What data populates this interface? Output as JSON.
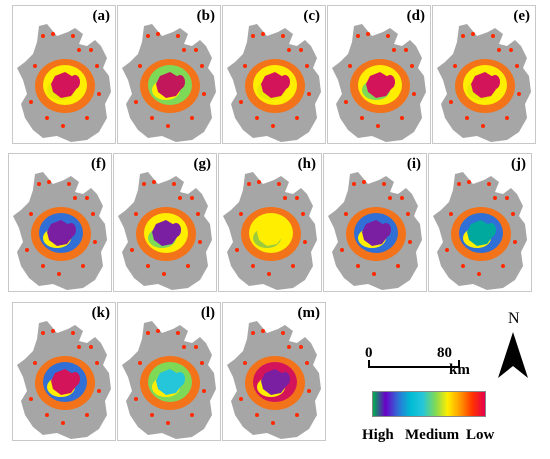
{
  "panels": [
    {
      "label": "(a)",
      "core": "#d4145a",
      "ring": "#ffee00",
      "accent": "#e8e800"
    },
    {
      "label": "(b)",
      "core": "#c2185b",
      "ring": "#7ed957",
      "accent": "#ffee00"
    },
    {
      "label": "(c)",
      "core": "#d4145a",
      "ring": "#ffee00",
      "accent": "#e8e800"
    },
    {
      "label": "(d)",
      "core": "#d4145a",
      "ring": "#ffee00",
      "accent": "#7ed957"
    },
    {
      "label": "(e)",
      "core": "#d4145a",
      "ring": "#ffee00",
      "accent": "#e8e800"
    },
    {
      "label": "(f)",
      "core": "#7b1fa2",
      "ring": "#2f6fd6",
      "accent": "#ffee00"
    },
    {
      "label": "(g)",
      "core": "#7b1fa2",
      "ring": "#ffee00",
      "accent": "#7ed957"
    },
    {
      "label": "(h)",
      "core": "#ffee00",
      "ring": "#ffee00",
      "accent": "#9ccc3c"
    },
    {
      "label": "(i)",
      "core": "#7b1fa2",
      "ring": "#2f6fd6",
      "accent": "#ffee00"
    },
    {
      "label": "(j)",
      "core": "#00a99d",
      "ring": "#2f6fd6",
      "accent": "#ffee00"
    },
    {
      "label": "(k)",
      "core": "#d4145a",
      "ring": "#2f6fd6",
      "accent": "#ffee00"
    },
    {
      "label": "(l)",
      "core": "#26c6da",
      "ring": "#7ed957",
      "accent": "#ffee00"
    },
    {
      "label": "(m)",
      "core": "#7b1fa2",
      "ring": "#d4145a",
      "accent": "#ffee00"
    }
  ],
  "north": {
    "label": "N",
    "icon": "north-arrow-icon"
  },
  "scale": {
    "zero": "0",
    "max": "80",
    "unit": "km"
  },
  "legend": {
    "high": "High",
    "medium": "Medium",
    "low": "Low",
    "ramp_colors": [
      "#00b050",
      "#6a00c8",
      "#2f6fd6",
      "#00bcd4",
      "#26c6da",
      "#7ed957",
      "#ffee00",
      "#ff9900",
      "#ff3300",
      "#e6004c"
    ]
  },
  "colors": {
    "land": "#a6a6a6",
    "periphery": "#ff2a00",
    "glow": "#ff6a00"
  }
}
